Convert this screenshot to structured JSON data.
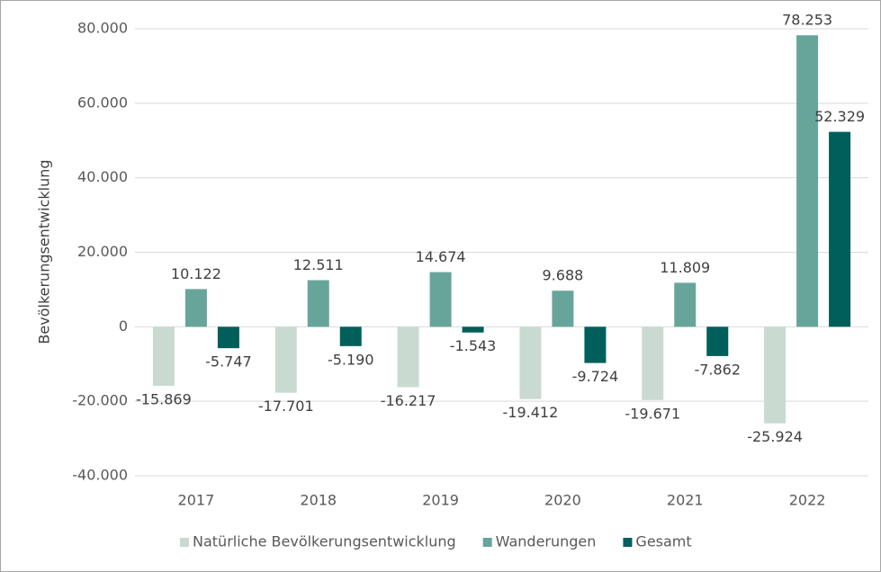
{
  "chart_data": {
    "type": "bar",
    "y_label": "Bevölkerungsentwicklung",
    "categories": [
      "2017",
      "2018",
      "2019",
      "2020",
      "2021",
      "2022"
    ],
    "series": [
      {
        "name": "Natürliche Bevölkerungsentwicklung",
        "color": "#c9dbd0",
        "values": [
          -15869,
          -17701,
          -16217,
          -19412,
          -19671,
          -25924
        ],
        "value_labels": [
          "-15.869",
          "-17.701",
          "-16.217",
          "-19.412",
          "-19.671",
          "-25.924"
        ]
      },
      {
        "name": "Wanderungen",
        "color": "#67a59b",
        "values": [
          10122,
          12511,
          14674,
          9688,
          11809,
          78253
        ],
        "value_labels": [
          "10.122",
          "12.511",
          "14.674",
          "9.688",
          "11.809",
          "78.253"
        ]
      },
      {
        "name": "Gesamt",
        "color": "#005e5b",
        "values": [
          -5747,
          -5190,
          -1543,
          -9724,
          -7862,
          52329
        ],
        "value_labels": [
          "-5.747",
          "-5.190",
          "-1.543",
          "-9.724",
          "-7.862",
          "52.329"
        ]
      }
    ],
    "ylim": [
      -40000,
      80000
    ],
    "yticks": [
      {
        "value": -40000,
        "label": "-40.000"
      },
      {
        "value": -20000,
        "label": "-20.000"
      },
      0,
      {
        "value": 20000,
        "label": "20.000"
      },
      {
        "value": 40000,
        "label": "40.000"
      },
      {
        "value": 60000,
        "label": "60.000"
      },
      {
        "value": 80000,
        "label": "80.000"
      }
    ],
    "grid": true
  }
}
